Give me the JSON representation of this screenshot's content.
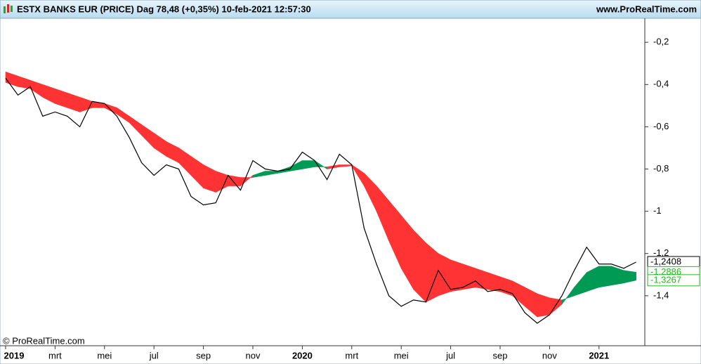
{
  "header": {
    "title": "ESTX BANKS EUR (PRICE) Dag 78,48 (+0,35%) 10-feb-2021 12:57:30",
    "site": "www.ProRealTime.com"
  },
  "chart_data": {
    "type": "band-line",
    "watermark": "© ProRealTime.com",
    "categories": [
      "2019",
      null,
      null,
      null,
      "mrt",
      null,
      null,
      null,
      "mei",
      null,
      null,
      null,
      "jul",
      null,
      null,
      null,
      "sep",
      null,
      null,
      null,
      "nov",
      null,
      null,
      null,
      "2020",
      null,
      null,
      null,
      "mrt",
      null,
      null,
      null,
      "mei",
      null,
      null,
      null,
      "jul",
      null,
      null,
      null,
      "sep",
      null,
      null,
      null,
      "nov",
      null,
      null,
      null,
      "2021",
      null,
      null,
      null
    ],
    "series": [
      {
        "color": "#000000",
        "last_label": "-1,2408",
        "values": [
          -0.37,
          -0.45,
          -0.41,
          -0.55,
          -0.53,
          -0.55,
          -0.6,
          -0.48,
          -0.49,
          -0.55,
          -0.65,
          -0.77,
          -0.83,
          -0.78,
          -0.8,
          -0.93,
          -0.97,
          -0.96,
          -0.83,
          -0.9,
          -0.76,
          -0.8,
          -0.81,
          -0.8,
          -0.72,
          -0.76,
          -0.85,
          -0.73,
          -0.78,
          -1.08,
          -1.25,
          -1.4,
          -1.45,
          -1.42,
          -1.43,
          -1.28,
          -1.37,
          -1.36,
          -1.33,
          -1.38,
          -1.37,
          -1.39,
          -1.48,
          -1.53,
          -1.49,
          -1.4,
          -1.28,
          -1.17,
          -1.25,
          -1.25,
          -1.27,
          -1.2408
        ]
      },
      {
        "color": "#22bb22",
        "last_label": "-1,2886",
        "values": [
          -0.39,
          -0.41,
          -0.42,
          -0.46,
          -0.49,
          -0.51,
          -0.53,
          -0.51,
          -0.51,
          -0.54,
          -0.58,
          -0.64,
          -0.7,
          -0.74,
          -0.77,
          -0.83,
          -0.89,
          -0.91,
          -0.88,
          -0.88,
          -0.83,
          -0.81,
          -0.81,
          -0.79,
          -0.76,
          -0.76,
          -0.8,
          -0.79,
          -0.785,
          -0.88,
          -1.0,
          -1.14,
          -1.27,
          -1.37,
          -1.43,
          -1.4,
          -1.38,
          -1.37,
          -1.36,
          -1.37,
          -1.38,
          -1.4,
          -1.45,
          -1.5,
          -1.49,
          -1.44,
          -1.36,
          -1.29,
          -1.26,
          -1.26,
          -1.28,
          -1.2886
        ]
      },
      {
        "color": "#22bb22",
        "last_label": "-1,3267",
        "values": [
          -0.34,
          -0.36,
          -0.38,
          -0.4,
          -0.42,
          -0.44,
          -0.46,
          -0.48,
          -0.49,
          -0.51,
          -0.55,
          -0.59,
          -0.63,
          -0.67,
          -0.7,
          -0.74,
          -0.78,
          -0.81,
          -0.83,
          -0.84,
          -0.84,
          -0.83,
          -0.82,
          -0.81,
          -0.8,
          -0.79,
          -0.79,
          -0.78,
          -0.78,
          -0.82,
          -0.88,
          -0.95,
          -1.02,
          -1.09,
          -1.15,
          -1.2,
          -1.23,
          -1.25,
          -1.27,
          -1.29,
          -1.31,
          -1.33,
          -1.36,
          -1.39,
          -1.41,
          -1.42,
          -1.4,
          -1.38,
          -1.36,
          -1.35,
          -1.34,
          -1.3267
        ]
      }
    ],
    "band_colors": {
      "up": "#009a55",
      "down": "#ff3333"
    },
    "ylim": [
      -1.63,
      -0.083
    ],
    "yticks": [
      {
        "value": -0.2,
        "label": "-0,2"
      },
      {
        "value": -0.4,
        "label": "-0,4"
      },
      {
        "value": -0.6,
        "label": "-0,6"
      },
      {
        "value": -0.8,
        "label": "-0,8"
      },
      -1,
      {
        "value": -1.2,
        "label": "-1,2"
      },
      {
        "value": -1.4,
        "label": "-1,4"
      }
    ],
    "grid": false
  }
}
